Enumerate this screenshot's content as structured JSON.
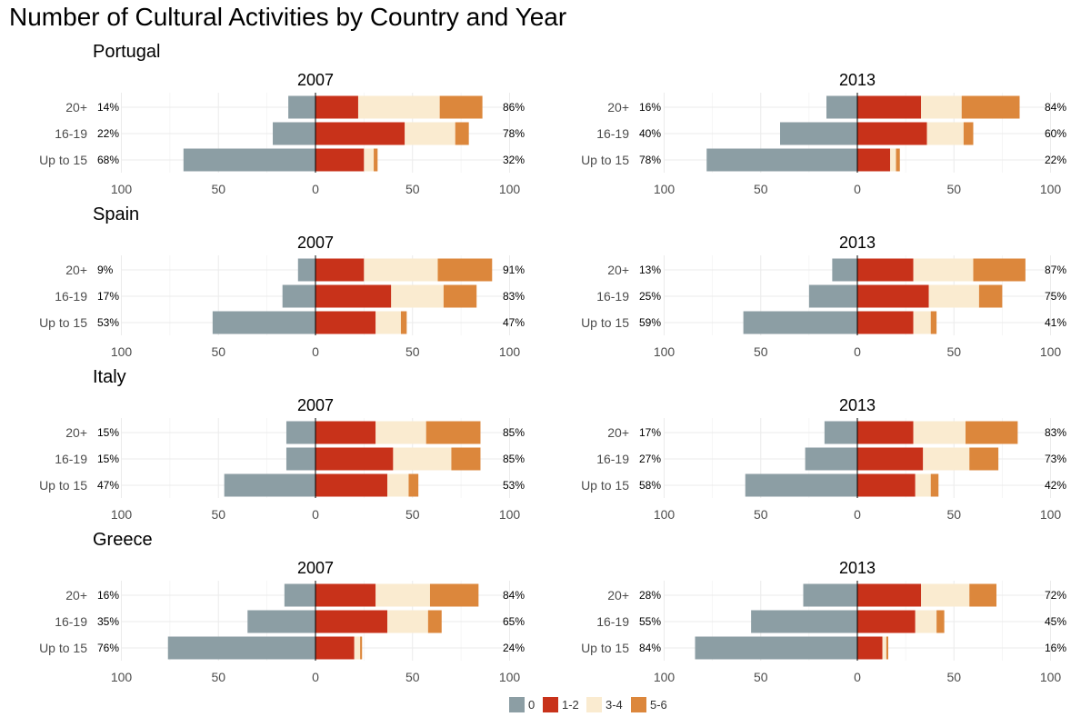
{
  "chart_data": {
    "type": "bar",
    "orientation": "horizontal-diverging",
    "title": "Number of Cultural Activities by Country and Year",
    "categories": [
      "20+",
      "16-19",
      "Up to 15"
    ],
    "xlim": [
      -100,
      100
    ],
    "ticks": [
      -100,
      -50,
      0,
      50,
      100
    ],
    "tick_labels": [
      "100",
      "50",
      "0",
      "50",
      "100"
    ],
    "grid": true,
    "legend": {
      "position": "bottom",
      "items": [
        {
          "label": "0",
          "color": "#8c9ea4"
        },
        {
          "label": "1-2",
          "color": "#c8321a"
        },
        {
          "label": "3-4",
          "color": "#faebd0"
        },
        {
          "label": "5-6",
          "color": "#dc873c"
        }
      ]
    },
    "countries": [
      {
        "name": "Portugal",
        "panels": [
          {
            "year": "2007",
            "rows": [
              {
                "category": "20+",
                "zero": 14,
                "r12": 22,
                "r34": 42,
                "r56": 22,
                "left_label": "14%",
                "right_label": "86%"
              },
              {
                "category": "16-19",
                "zero": 22,
                "r12": 46,
                "r34": 26,
                "r56": 7,
                "left_label": "22%",
                "right_label": "78%"
              },
              {
                "category": "Up to 15",
                "zero": 68,
                "r12": 25,
                "r34": 5,
                "r56": 2,
                "left_label": "68%",
                "right_label": "32%"
              }
            ]
          },
          {
            "year": "2013",
            "rows": [
              {
                "category": "20+",
                "zero": 16,
                "r12": 33,
                "r34": 21,
                "r56": 30,
                "left_label": "16%",
                "right_label": "84%"
              },
              {
                "category": "16-19",
                "zero": 40,
                "r12": 36,
                "r34": 19,
                "r56": 5,
                "left_label": "40%",
                "right_label": "60%"
              },
              {
                "category": "Up to 15",
                "zero": 78,
                "r12": 17,
                "r34": 3,
                "r56": 2,
                "left_label": "78%",
                "right_label": "22%"
              }
            ]
          }
        ]
      },
      {
        "name": "Spain",
        "panels": [
          {
            "year": "2007",
            "rows": [
              {
                "category": "20+",
                "zero": 9,
                "r12": 25,
                "r34": 38,
                "r56": 28,
                "left_label": "9%",
                "right_label": "91%"
              },
              {
                "category": "16-19",
                "zero": 17,
                "r12": 39,
                "r34": 27,
                "r56": 17,
                "left_label": "17%",
                "right_label": "83%"
              },
              {
                "category": "Up to 15",
                "zero": 53,
                "r12": 31,
                "r34": 13,
                "r56": 3,
                "left_label": "53%",
                "right_label": "47%"
              }
            ]
          },
          {
            "year": "2013",
            "rows": [
              {
                "category": "20+",
                "zero": 13,
                "r12": 29,
                "r34": 31,
                "r56": 27,
                "left_label": "13%",
                "right_label": "87%"
              },
              {
                "category": "16-19",
                "zero": 25,
                "r12": 37,
                "r34": 26,
                "r56": 12,
                "left_label": "25%",
                "right_label": "75%"
              },
              {
                "category": "Up to 15",
                "zero": 59,
                "r12": 29,
                "r34": 9,
                "r56": 3,
                "left_label": "59%",
                "right_label": "41%"
              }
            ]
          }
        ]
      },
      {
        "name": "Italy",
        "panels": [
          {
            "year": "2007",
            "rows": [
              {
                "category": "20+",
                "zero": 15,
                "r12": 31,
                "r34": 26,
                "r56": 28,
                "left_label": "15%",
                "right_label": "85%"
              },
              {
                "category": "16-19",
                "zero": 15,
                "r12": 40,
                "r34": 30,
                "r56": 15,
                "left_label": "15%",
                "right_label": "85%"
              },
              {
                "category": "Up to 15",
                "zero": 47,
                "r12": 37,
                "r34": 11,
                "r56": 5,
                "left_label": "47%",
                "right_label": "53%"
              }
            ]
          },
          {
            "year": "2013",
            "rows": [
              {
                "category": "20+",
                "zero": 17,
                "r12": 29,
                "r34": 27,
                "r56": 27,
                "left_label": "17%",
                "right_label": "83%"
              },
              {
                "category": "16-19",
                "zero": 27,
                "r12": 34,
                "r34": 24,
                "r56": 15,
                "left_label": "27%",
                "right_label": "73%"
              },
              {
                "category": "Up to 15",
                "zero": 58,
                "r12": 30,
                "r34": 8,
                "r56": 4,
                "left_label": "58%",
                "right_label": "42%"
              }
            ]
          }
        ]
      },
      {
        "name": "Greece",
        "panels": [
          {
            "year": "2007",
            "rows": [
              {
                "category": "20+",
                "zero": 16,
                "r12": 31,
                "r34": 28,
                "r56": 25,
                "left_label": "16%",
                "right_label": "84%"
              },
              {
                "category": "16-19",
                "zero": 35,
                "r12": 37,
                "r34": 21,
                "r56": 7,
                "left_label": "35%",
                "right_label": "65%"
              },
              {
                "category": "Up to 15",
                "zero": 76,
                "r12": 20,
                "r34": 3,
                "r56": 1,
                "left_label": "76%",
                "right_label": "24%"
              }
            ]
          },
          {
            "year": "2013",
            "rows": [
              {
                "category": "20+",
                "zero": 28,
                "r12": 33,
                "r34": 25,
                "r56": 14,
                "left_label": "28%",
                "right_label": "72%"
              },
              {
                "category": "16-19",
                "zero": 55,
                "r12": 30,
                "r34": 11,
                "r56": 4,
                "left_label": "55%",
                "right_label": "45%"
              },
              {
                "category": "Up to 15",
                "zero": 84,
                "r12": 13,
                "r34": 2,
                "r56": 1,
                "left_label": "84%",
                "right_label": "16%"
              }
            ]
          }
        ]
      }
    ]
  }
}
